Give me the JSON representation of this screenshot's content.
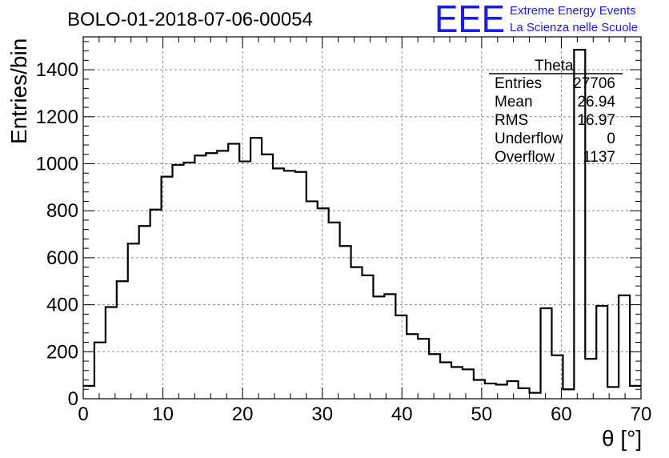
{
  "title": "BOLO-01-2018-07-06-00054",
  "logo": {
    "mark": "EEE",
    "line1": "Extreme Energy Events",
    "line2": "La Scienza nelle Scuole",
    "color": "#1a1aff"
  },
  "stats": {
    "name": "Theta",
    "rows": [
      {
        "label": "Entries",
        "value": "27706"
      },
      {
        "label": "Mean",
        "value": "26.94"
      },
      {
        "label": "RMS",
        "value": "16.97"
      },
      {
        "label": "Underflow",
        "value": "0"
      },
      {
        "label": "Overflow",
        "value": "1137"
      }
    ]
  },
  "chart_data": {
    "type": "bar",
    "histogram": true,
    "xlabel": "θ [°]",
    "ylabel": "Entries/bin",
    "xlim": [
      0,
      70
    ],
    "ylim": [
      0,
      1540
    ],
    "xticks": [
      0,
      10,
      20,
      30,
      40,
      50,
      60,
      70
    ],
    "yticks": [
      0,
      200,
      400,
      600,
      800,
      1000,
      1200,
      1400
    ],
    "grid": true,
    "bin_width": 1.4,
    "bin_edges_start": 0,
    "values": [
      55,
      240,
      390,
      500,
      660,
      735,
      805,
      945,
      995,
      1005,
      1035,
      1045,
      1055,
      1085,
      1010,
      1110,
      1040,
      980,
      970,
      965,
      840,
      810,
      750,
      650,
      560,
      525,
      435,
      445,
      355,
      275,
      255,
      190,
      155,
      135,
      125,
      80,
      65,
      60,
      75,
      45,
      25,
      385,
      185,
      40,
      1485,
      170,
      395,
      50,
      440,
      55
    ],
    "line_color": "#000000"
  }
}
